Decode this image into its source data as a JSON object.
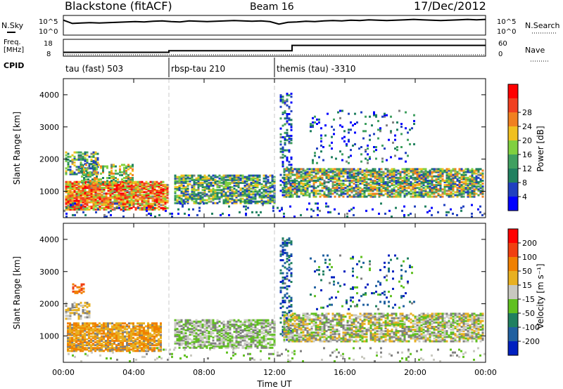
{
  "header": {
    "station": "Blackstone (fitACF)",
    "beam": "Beam 16",
    "date": "17/Dec/2012"
  },
  "colors": {
    "power_scale": [
      "#0000ff",
      "#2040c0",
      "#208060",
      "#40a060",
      "#80d040",
      "#f0c020",
      "#f08020",
      "#f04020",
      "#ff0000"
    ],
    "velocity_scale": [
      "#0020c0",
      "#2060a0",
      "#208060",
      "#60c020",
      "#c8c8c0",
      "#e8b020",
      "#f08000",
      "#f04010",
      "#ff0000"
    ],
    "ground_scatter": "#808080"
  },
  "chart_data": [
    {
      "type": "line",
      "name": "noise-panel",
      "left_label": "N.Sky",
      "right_label": "N.Search",
      "left_ticks": [
        "10^5",
        "10^0"
      ],
      "right_ticks": [
        "10^5",
        "10^0"
      ],
      "series": [
        {
          "values_log": [
            4.1,
            3.2,
            3.3,
            3.4,
            3.3,
            3.4,
            3.5,
            3.6,
            3.7,
            3.6,
            3.8,
            3.9,
            3.7,
            3.6,
            3.9,
            3.8,
            3.7,
            3.8,
            3.9,
            4.0,
            3.9,
            3.8,
            3.9,
            3.7,
            3.0,
            3.5,
            3.6,
            3.8,
            3.7,
            3.9,
            4.0,
            3.9,
            4.1,
            4.0,
            4.2,
            4.1,
            4.0,
            4.1,
            4.2,
            4.3,
            4.2,
            4.1,
            4.0,
            4.1,
            4.2,
            4.3,
            4.2,
            4.3
          ]
        }
      ]
    },
    {
      "type": "line",
      "name": "freq-nave-panel",
      "left_label_top": "Freq.",
      "left_label_bottom": "[MHz]",
      "right_label": "Nave",
      "left_ticks": [
        "18",
        "8"
      ],
      "right_ticks": [
        "60",
        "0"
      ],
      "cpid_label": "CPID",
      "freq": [
        {
          "t": 0,
          "mhz": 10.5
        },
        {
          "t": 6,
          "mhz": 11.5
        },
        {
          "t": 13,
          "mhz": 15.0
        },
        {
          "t": 24,
          "mhz": 15.0
        }
      ],
      "cpid_segments": [
        {
          "label": "tau (fast) 503",
          "start": 0,
          "end": 6
        },
        {
          "label": "rbsp-tau 210",
          "start": 6,
          "end": 12
        },
        {
          "label": "themis (tau) -3310",
          "start": 12,
          "end": 24
        }
      ]
    },
    {
      "type": "heatmap",
      "name": "power-panel",
      "ylabel": "Slant Range [km]",
      "ylim": [
        180,
        4500
      ],
      "yticks": [
        1000,
        2000,
        3000,
        4000
      ],
      "xlim": [
        0,
        24
      ],
      "colorbar_label": "Power [dB]",
      "colorbar_ticks": [
        "4",
        "8",
        "12",
        "16",
        "20",
        "24",
        "28"
      ],
      "patches": [
        {
          "t0": 0.1,
          "t1": 5.9,
          "r0": 400,
          "r1": 1300,
          "dens": 0.85,
          "lvl": [
            4,
            8
          ],
          "gs": 0.05
        },
        {
          "t0": 0.1,
          "t1": 2.0,
          "r0": 1500,
          "r1": 2200,
          "dens": 0.55,
          "lvl": [
            1,
            5
          ],
          "gs": 0.05
        },
        {
          "t0": 1.0,
          "t1": 4.0,
          "r0": 1200,
          "r1": 1800,
          "dens": 0.45,
          "lvl": [
            2,
            6
          ],
          "gs": 0.05
        },
        {
          "t0": 6.3,
          "t1": 12.0,
          "r0": 600,
          "r1": 1500,
          "dens": 0.7,
          "lvl": [
            1,
            5
          ],
          "gs": 0.05
        },
        {
          "t0": 12.3,
          "t1": 13.0,
          "r0": 800,
          "r1": 4000,
          "dens": 0.3,
          "lvl": [
            0,
            3
          ],
          "gs": 0.05
        },
        {
          "t0": 12.5,
          "t1": 23.8,
          "r0": 800,
          "r1": 1700,
          "dens": 0.7,
          "lvl": [
            1,
            6
          ],
          "gs": 0.05
        },
        {
          "t0": 14.0,
          "t1": 20.0,
          "r0": 1800,
          "r1": 3500,
          "dens": 0.08,
          "lvl": [
            0,
            3
          ],
          "gs": 0.05
        },
        {
          "t0": 0.0,
          "t1": 24.0,
          "r0": 180,
          "r1": 600,
          "dens": 0.08,
          "lvl": [
            0,
            2
          ],
          "gs": 0.05
        }
      ]
    },
    {
      "type": "heatmap",
      "name": "velocity-panel",
      "ylabel": "Slant Range [km]",
      "ylim": [
        180,
        4500
      ],
      "yticks": [
        1000,
        2000,
        3000,
        4000
      ],
      "xlim": [
        0,
        24
      ],
      "xticks": [
        "00:00",
        "04:00",
        "08:00",
        "12:00",
        "16:00",
        "20:00",
        "00:00"
      ],
      "xlabel": "Time UT",
      "colorbar_label": "Velocity [m s⁻¹]",
      "colorbar_ticks": [
        "200",
        "100",
        "50",
        "15",
        "-15",
        "-50",
        "-100",
        "-200"
      ],
      "patches": [
        {
          "t0": 0.2,
          "t1": 5.5,
          "r0": 500,
          "r1": 1400,
          "dens": 0.8,
          "lvl": [
            5,
            6
          ],
          "gs": 0.15
        },
        {
          "t0": 0.1,
          "t1": 1.5,
          "r0": 1500,
          "r1": 2000,
          "dens": 0.5,
          "lvl": [
            4,
            5
          ],
          "gs": 0.3
        },
        {
          "t0": 0.5,
          "t1": 1.2,
          "r0": 2300,
          "r1": 2600,
          "dens": 0.5,
          "lvl": [
            6,
            7
          ],
          "gs": 0.0
        },
        {
          "t0": 6.3,
          "t1": 12.0,
          "r0": 600,
          "r1": 1500,
          "dens": 0.65,
          "lvl": [
            3,
            4
          ],
          "gs": 0.25
        },
        {
          "t0": 12.3,
          "t1": 13.0,
          "r0": 800,
          "r1": 4000,
          "dens": 0.3,
          "lvl": [
            0,
            2
          ],
          "gs": 0.05
        },
        {
          "t0": 12.5,
          "t1": 23.8,
          "r0": 800,
          "r1": 1700,
          "dens": 0.65,
          "lvl": [
            3,
            5
          ],
          "gs": 0.3
        },
        {
          "t0": 14.0,
          "t1": 20.0,
          "r0": 1800,
          "r1": 3500,
          "dens": 0.08,
          "lvl": [
            0,
            3
          ],
          "gs": 0.05
        },
        {
          "t0": 0.0,
          "t1": 24.0,
          "r0": 180,
          "r1": 600,
          "dens": 0.06,
          "lvl": [
            3,
            4
          ],
          "gs": 0.3
        }
      ]
    }
  ]
}
